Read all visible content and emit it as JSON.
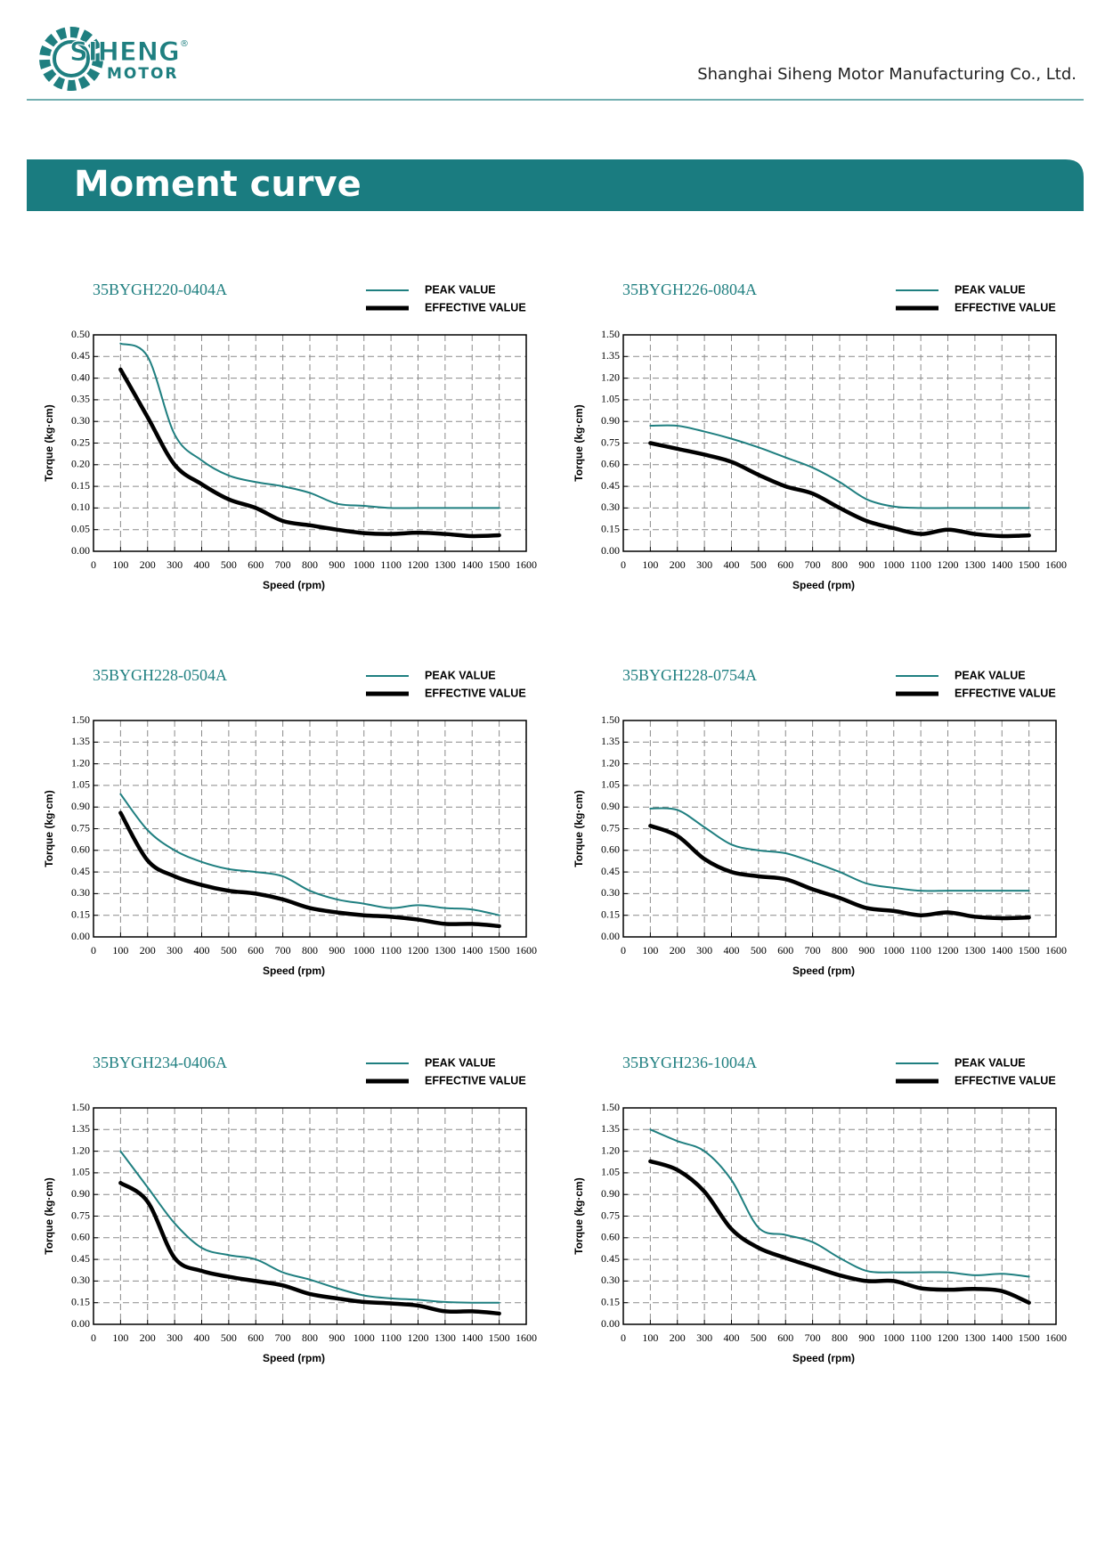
{
  "header": {
    "logo": {
      "name": "SIHENG",
      "sub": "MOTOR",
      "mark": "®"
    },
    "company": "Shanghai Siheng Motor Manufacturing Co., Ltd.",
    "section_title": "Moment curve"
  },
  "chart_data": [
    {
      "type": "line",
      "title": "35BYGH220-0404A",
      "x_label": "Speed (rpm)",
      "y_label": "Torque (kg·cm)",
      "x": [
        100,
        200,
        300,
        400,
        500,
        600,
        700,
        800,
        900,
        1000,
        1100,
        1200,
        1300,
        1400,
        1500
      ],
      "series": [
        {
          "name": "PEAK VALUE",
          "color": "#1f7f80",
          "values": [
            0.48,
            0.45,
            0.27,
            0.21,
            0.175,
            0.16,
            0.15,
            0.135,
            0.11,
            0.105,
            0.1,
            0.1,
            0.1,
            0.1,
            0.1
          ]
        },
        {
          "name": "EFFECTIVE VALUE",
          "color": "#000000",
          "values": [
            0.42,
            0.31,
            0.2,
            0.155,
            0.12,
            0.1,
            0.07,
            0.06,
            0.05,
            0.042,
            0.04,
            0.043,
            0.04,
            0.035,
            0.037
          ]
        }
      ],
      "xlim": [
        0,
        1600
      ],
      "xticks": [
        0,
        100,
        200,
        300,
        400,
        500,
        600,
        700,
        800,
        900,
        1000,
        1100,
        1200,
        1300,
        1400,
        1500,
        1600
      ],
      "ylim": [
        0,
        0.5
      ],
      "yticks": [
        {
          "value": 0,
          "label": "0.00"
        },
        0.05,
        {
          "value": 0.1,
          "label": "0.10"
        },
        0.15,
        {
          "value": 0.2,
          "label": "0.20"
        },
        0.25,
        {
          "value": 0.3,
          "label": "0.30"
        },
        0.35,
        {
          "value": 0.4,
          "label": "0.40"
        },
        0.45,
        {
          "value": 0.5,
          "label": "0.50"
        }
      ],
      "grid": true
    },
    {
      "type": "line",
      "title": "35BYGH226-0804A",
      "x_label": "Speed (rpm)",
      "y_label": "Torque (kg·cm)",
      "x": [
        100,
        200,
        300,
        400,
        500,
        600,
        700,
        800,
        900,
        1000,
        1100,
        1200,
        1300,
        1400,
        1500
      ],
      "series": [
        {
          "name": "PEAK VALUE",
          "color": "#1f7f80",
          "values": [
            0.87,
            0.87,
            0.83,
            0.78,
            0.72,
            0.65,
            0.58,
            0.48,
            0.36,
            0.31,
            0.3,
            0.3,
            0.3,
            0.3,
            0.3
          ]
        },
        {
          "name": "EFFECTIVE VALUE",
          "color": "#000000",
          "values": [
            0.75,
            0.71,
            0.67,
            0.62,
            0.53,
            0.45,
            0.4,
            0.3,
            0.21,
            0.16,
            0.12,
            0.15,
            0.12,
            0.105,
            0.11
          ]
        }
      ],
      "xlim": [
        0,
        1600
      ],
      "xticks": [
        0,
        100,
        200,
        300,
        400,
        500,
        600,
        700,
        800,
        900,
        1000,
        1100,
        1200,
        1300,
        1400,
        1500,
        1600
      ],
      "ylim": [
        0,
        1.5
      ],
      "yticks": [
        {
          "value": 0,
          "label": "0.00"
        },
        0.15,
        {
          "value": 0.3,
          "label": "0.30"
        },
        0.45,
        {
          "value": 0.6,
          "label": "0.60"
        },
        0.75,
        {
          "value": 0.9,
          "label": "0.90"
        },
        1.05,
        {
          "value": 1.2,
          "label": "1.20"
        },
        1.35,
        {
          "value": 1.5,
          "label": "1.50"
        }
      ],
      "grid": true
    },
    {
      "type": "line",
      "title": "35BYGH228-0504A",
      "x_label": "Speed (rpm)",
      "y_label": "Torque (kg·cm)",
      "x": [
        100,
        200,
        300,
        400,
        500,
        600,
        700,
        800,
        900,
        1000,
        1100,
        1200,
        1300,
        1400,
        1500
      ],
      "series": [
        {
          "name": "PEAK VALUE",
          "color": "#1f7f80",
          "values": [
            0.99,
            0.74,
            0.6,
            0.52,
            0.47,
            0.45,
            0.42,
            0.32,
            0.26,
            0.23,
            0.2,
            0.22,
            0.2,
            0.19,
            0.15
          ]
        },
        {
          "name": "EFFECTIVE VALUE",
          "color": "#000000",
          "values": [
            0.86,
            0.53,
            0.42,
            0.36,
            0.32,
            0.3,
            0.26,
            0.2,
            0.17,
            0.15,
            0.14,
            0.12,
            0.09,
            0.09,
            0.075
          ]
        }
      ],
      "xlim": [
        0,
        1600
      ],
      "xticks": [
        0,
        100,
        200,
        300,
        400,
        500,
        600,
        700,
        800,
        900,
        1000,
        1100,
        1200,
        1300,
        1400,
        1500,
        1600
      ],
      "ylim": [
        0,
        1.5
      ],
      "yticks": [
        {
          "value": 0,
          "label": "0.00"
        },
        0.15,
        {
          "value": 0.3,
          "label": "0.30"
        },
        0.45,
        {
          "value": 0.6,
          "label": "0.60"
        },
        0.75,
        {
          "value": 0.9,
          "label": "0.90"
        },
        1.05,
        {
          "value": 1.2,
          "label": "1.20"
        },
        1.35,
        {
          "value": 1.5,
          "label": "1.50"
        }
      ],
      "grid": true
    },
    {
      "type": "line",
      "title": "35BYGH228-0754A",
      "x_label": "Speed (rpm)",
      "y_label": "Torque (kg·cm)",
      "x": [
        100,
        200,
        300,
        400,
        500,
        600,
        700,
        800,
        900,
        1000,
        1100,
        1200,
        1300,
        1400,
        1500
      ],
      "series": [
        {
          "name": "PEAK VALUE",
          "color": "#1f7f80",
          "values": [
            0.89,
            0.88,
            0.76,
            0.64,
            0.6,
            0.58,
            0.52,
            0.45,
            0.37,
            0.34,
            0.32,
            0.32,
            0.32,
            0.32,
            0.32
          ]
        },
        {
          "name": "EFFECTIVE VALUE",
          "color": "#000000",
          "values": [
            0.77,
            0.7,
            0.54,
            0.45,
            0.42,
            0.4,
            0.33,
            0.27,
            0.2,
            0.18,
            0.15,
            0.17,
            0.14,
            0.13,
            0.135
          ]
        }
      ],
      "xlim": [
        0,
        1600
      ],
      "xticks": [
        0,
        100,
        200,
        300,
        400,
        500,
        600,
        700,
        800,
        900,
        1000,
        1100,
        1200,
        1300,
        1400,
        1500,
        1600
      ],
      "ylim": [
        0,
        1.5
      ],
      "yticks": [
        {
          "value": 0,
          "label": "0.00"
        },
        0.15,
        {
          "value": 0.3,
          "label": "0.30"
        },
        0.45,
        {
          "value": 0.6,
          "label": "0.60"
        },
        0.75,
        {
          "value": 0.9,
          "label": "0.90"
        },
        1.05,
        {
          "value": 1.2,
          "label": "1.20"
        },
        1.35,
        {
          "value": 1.5,
          "label": "1.50"
        }
      ],
      "grid": true
    },
    {
      "type": "line",
      "title": "35BYGH234-0406A",
      "x_label": "Speed (rpm)",
      "y_label": "Torque (kg·cm)",
      "x": [
        100,
        200,
        300,
        400,
        500,
        600,
        700,
        800,
        900,
        1000,
        1100,
        1200,
        1300,
        1400,
        1500
      ],
      "series": [
        {
          "name": "PEAK VALUE",
          "color": "#1f7f80",
          "values": [
            1.2,
            0.95,
            0.7,
            0.53,
            0.48,
            0.45,
            0.36,
            0.31,
            0.25,
            0.2,
            0.18,
            0.17,
            0.155,
            0.15,
            0.15
          ]
        },
        {
          "name": "EFFECTIVE VALUE",
          "color": "#000000",
          "values": [
            0.98,
            0.85,
            0.46,
            0.37,
            0.33,
            0.3,
            0.27,
            0.21,
            0.18,
            0.155,
            0.145,
            0.13,
            0.09,
            0.09,
            0.075
          ]
        }
      ],
      "xlim": [
        0,
        1600
      ],
      "xticks": [
        0,
        100,
        200,
        300,
        400,
        500,
        600,
        700,
        800,
        900,
        1000,
        1100,
        1200,
        1300,
        1400,
        1500,
        1600
      ],
      "ylim": [
        0,
        1.5
      ],
      "yticks": [
        {
          "value": 0,
          "label": "0.00"
        },
        0.15,
        {
          "value": 0.3,
          "label": "0.30"
        },
        0.45,
        {
          "value": 0.6,
          "label": "0.60"
        },
        0.75,
        {
          "value": 0.9,
          "label": "0.90"
        },
        1.05,
        {
          "value": 1.2,
          "label": "1.20"
        },
        1.35,
        {
          "value": 1.5,
          "label": "1.50"
        }
      ],
      "grid": true
    },
    {
      "type": "line",
      "title": "35BYGH236-1004A",
      "x_label": "Speed (rpm)",
      "y_label": "Torque (kg·cm)",
      "x": [
        100,
        200,
        300,
        400,
        500,
        600,
        700,
        800,
        900,
        1000,
        1100,
        1200,
        1300,
        1400,
        1500
      ],
      "series": [
        {
          "name": "PEAK VALUE",
          "color": "#1f7f80",
          "values": [
            1.35,
            1.27,
            1.2,
            1.0,
            0.67,
            0.62,
            0.57,
            0.46,
            0.37,
            0.36,
            0.36,
            0.36,
            0.34,
            0.35,
            0.33
          ]
        },
        {
          "name": "EFFECTIVE VALUE",
          "color": "#000000",
          "values": [
            1.13,
            1.07,
            0.92,
            0.66,
            0.53,
            0.46,
            0.4,
            0.34,
            0.3,
            0.3,
            0.25,
            0.24,
            0.245,
            0.23,
            0.15
          ]
        }
      ],
      "xlim": [
        0,
        1600
      ],
      "xticks": [
        0,
        100,
        200,
        300,
        400,
        500,
        600,
        700,
        800,
        900,
        1000,
        1100,
        1200,
        1300,
        1400,
        1500,
        1600
      ],
      "ylim": [
        0,
        1.5
      ],
      "yticks": [
        {
          "value": 0,
          "label": "0.00"
        },
        0.15,
        {
          "value": 0.3,
          "label": "0.30"
        },
        0.45,
        {
          "value": 0.6,
          "label": "0.60"
        },
        0.75,
        {
          "value": 0.9,
          "label": "0.90"
        },
        1.05,
        {
          "value": 1.2,
          "label": "1.20"
        },
        1.35,
        {
          "value": 1.5,
          "label": "1.50"
        }
      ],
      "grid": true
    }
  ]
}
